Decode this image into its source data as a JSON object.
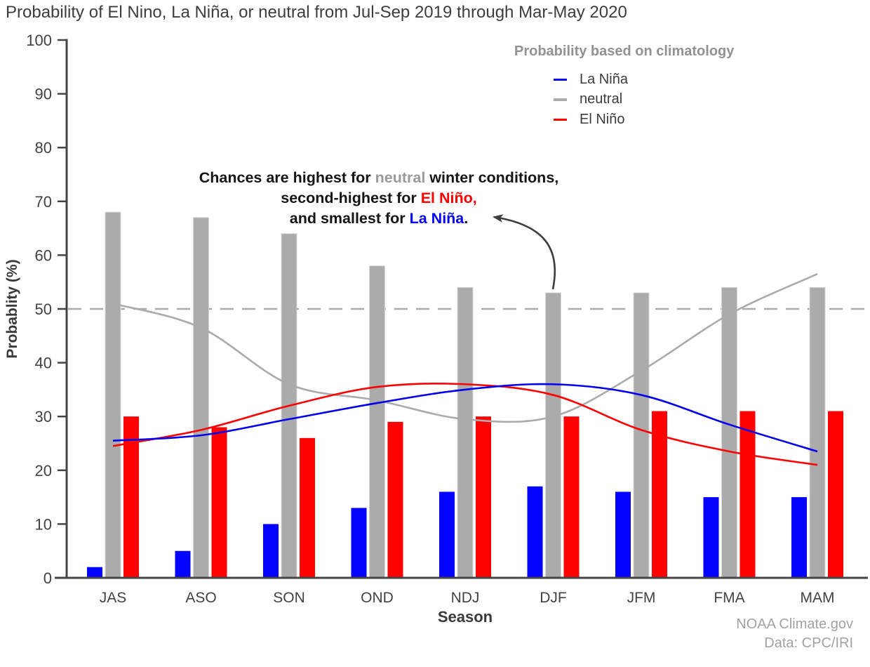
{
  "title": "Probability of El Nino, La Niña, or neutral from Jul-Sep 2019 through Mar-May 2020",
  "legend": {
    "title": "Probability based on climatology",
    "items": [
      {
        "label": "La Niña",
        "color": "#0202ee"
      },
      {
        "label": "neutral",
        "color": "#ababab"
      },
      {
        "label": "El Niño",
        "color": "#fe0000"
      }
    ]
  },
  "annotation": {
    "lines": [
      [
        {
          "t": "Chances are highest for "
        },
        {
          "t": "neutral",
          "c": "#9a9a9a"
        },
        {
          "t": " winter conditions,"
        }
      ],
      [
        {
          "t": "second-highest for "
        },
        {
          "t": "El Niño,",
          "c": "#fe0000"
        }
      ],
      [
        {
          "t": "and smallest for "
        },
        {
          "t": "La Niña",
          "c": "#0202fe"
        },
        {
          "t": "."
        }
      ]
    ]
  },
  "footer": {
    "credit": "NOAA Climate.gov",
    "source": "Data: CPC/IRI"
  },
  "chart_data": {
    "type": "bar",
    "title": "Probability of El Nino, La Niña, or neutral from Jul-Sep 2019 through Mar-May 2020",
    "xlabel": "Season",
    "ylabel": "Probablity (%)",
    "ylim": [
      0,
      100
    ],
    "yticks": [
      0,
      10,
      20,
      30,
      40,
      50,
      60,
      70,
      80,
      90,
      100
    ],
    "reference_line": 50,
    "grid": false,
    "legend_position": "top-right",
    "categories": [
      "JAS",
      "ASO",
      "SON",
      "OND",
      "NDJ",
      "DJF",
      "JFM",
      "FMA",
      "MAM"
    ],
    "bar_series": [
      {
        "name": "La Niña",
        "color": "#0202fe",
        "values": [
          2,
          5,
          10,
          13,
          16,
          17,
          16,
          15,
          15
        ]
      },
      {
        "name": "neutral",
        "color": "#ababab",
        "values": [
          68,
          67,
          64,
          58,
          54,
          53,
          53,
          54,
          54
        ]
      },
      {
        "name": "El Niño",
        "color": "#fe0000",
        "values": [
          30,
          28,
          26,
          29,
          30,
          30,
          31,
          31,
          31
        ]
      }
    ],
    "line_series": [
      {
        "name": "La Niña climatology",
        "color": "#0202ee",
        "values": [
          25.5,
          26.5,
          29.5,
          32.5,
          35,
          36,
          34,
          28.5,
          23.5
        ]
      },
      {
        "name": "neutral climatology",
        "color": "#ababab",
        "values": [
          51,
          46.5,
          36,
          33,
          29.5,
          30,
          38.5,
          49,
          56.5
        ]
      },
      {
        "name": "El Niño climatology",
        "color": "#fe0000",
        "values": [
          24.5,
          27.5,
          32,
          35.5,
          36,
          34,
          27.5,
          23.5,
          21
        ]
      }
    ]
  }
}
